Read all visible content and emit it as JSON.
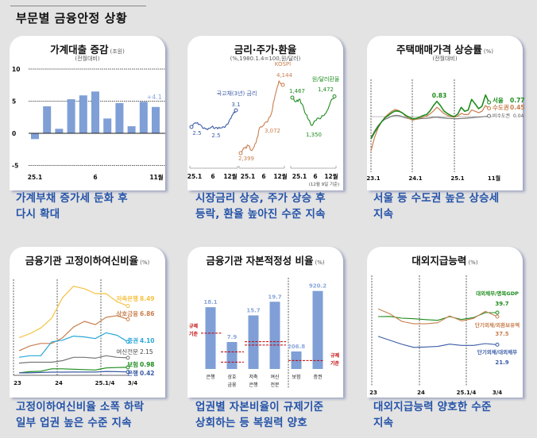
{
  "page_title": "부문별 금융안정 상황",
  "panels": [
    {
      "title": "가계대출 증감",
      "unit": "(조원)",
      "subtitle": "(전월대비)",
      "caption": [
        "가계부채 증가세 둔화 후",
        "다시 확대"
      ]
    },
    {
      "title": "금리·주가·환율",
      "unit": "",
      "subtitle": "(%,1980.1.4=100,원/달러)",
      "caption": [
        "시장금리 상승, 주가 상승 후",
        "등락, 환율 높아진 수준 지속"
      ]
    },
    {
      "title": "주택매매가격 상승률",
      "unit": "(%)",
      "subtitle": "(전월대비)",
      "caption": [
        "서울 등 수도권 높은 상승세",
        "지속"
      ]
    },
    {
      "title": "금융기관 고정이하여신비율",
      "unit": "(%)",
      "subtitle": "",
      "caption": [
        "고정이하여신비율 소폭 하락",
        "일부 업권 높은 수준 지속"
      ]
    },
    {
      "title": "금융기관 자본적정성 비율",
      "unit": "(%)",
      "subtitle": "",
      "caption": [
        "업권별 자본비율이 규제기준",
        "상회하는 등 복원력 양호"
      ]
    },
    {
      "title": "대외지급능력",
      "unit": "(%)",
      "subtitle": "",
      "caption": [
        "대외지급능력 양호한 수준",
        "지속"
      ]
    }
  ],
  "chart_data": [
    {
      "type": "bar",
      "title": "가계대출 증감",
      "categories": [
        "25.1",
        "2",
        "3",
        "4",
        "5",
        "6",
        "7",
        "8",
        "9",
        "10",
        "11"
      ],
      "values": [
        -0.9,
        4.2,
        0.7,
        5.3,
        5.9,
        6.5,
        2.3,
        4.7,
        1.1,
        4.9,
        4.1
      ],
      "x_tick_labels": [
        "25.1",
        "6",
        "11월"
      ],
      "y_ticks": [
        "10",
        "5",
        "0",
        "-5"
      ],
      "ylim": [
        -5,
        10
      ],
      "annotation": "+4.1",
      "bar_color": "#7f9fd6"
    },
    {
      "type": "line",
      "title": "금리·주가·환율",
      "note": "(12월 9일 기준)",
      "x_tick_labels": [
        "25.1",
        "6",
        "12월"
      ],
      "series": [
        {
          "name": "국고채(3년) 금리",
          "color": "#3b5ba5",
          "values": [
            2.5,
            2.65,
            2.6,
            2.45,
            2.4,
            2.5,
            2.48,
            2.46,
            2.5,
            2.6,
            2.9,
            3.1
          ],
          "labels": [
            "2.5",
            "2.5",
            "3.1"
          ]
        },
        {
          "name": "KOSPI",
          "color": "#c87f4f",
          "values": [
            2399,
            2520,
            2580,
            2470,
            2650,
            3020,
            3072,
            3150,
            3350,
            3800,
            4144,
            4050
          ],
          "labels": [
            "2,399",
            "3,072",
            "4,144"
          ]
        },
        {
          "name": "원/달러환율",
          "color": "#1e8c1e",
          "values": [
            1467,
            1450,
            1460,
            1420,
            1380,
            1350,
            1370,
            1380,
            1390,
            1410,
            1450,
            1472
          ],
          "labels": [
            "1,467",
            "1,350",
            "1,472"
          ]
        }
      ]
    },
    {
      "type": "line",
      "title": "주택매매가격 상승률",
      "x_tick_labels": [
        "23.1",
        "24.1",
        "25.1",
        "11월"
      ],
      "peak_label": "0.83",
      "series": [
        {
          "name": "서울",
          "end_label": "0.77",
          "color": "#1e8c1e",
          "values": [
            -1.21,
            -0.86,
            -0.57,
            -0.29,
            -0.07,
            0.07,
            0.21,
            0.31,
            0.29,
            0.21,
            0.07,
            -0.03,
            -0.11,
            -0.1,
            -0.03,
            0.06,
            0.11,
            0.31,
            0.6,
            0.83,
            0.6,
            0.31,
            0.17,
            0.06,
            0,
            0.14,
            0.5,
            0.29,
            0.36,
            0.93,
            0.69,
            0.43,
            0.57,
            1.17,
            0.77
          ]
        },
        {
          "name": "수도권",
          "end_label": "0.45",
          "color": "#c87f4f",
          "values": [
            -1.86,
            -1.14,
            -0.64,
            -0.29,
            -0.03,
            0.14,
            0.29,
            0.39,
            0.33,
            0.21,
            0.03,
            -0.11,
            -0.19,
            -0.14,
            -0.09,
            -0.03,
            0.03,
            0.14,
            0.31,
            0.51,
            0.34,
            0.17,
            0.07,
            0,
            -0.03,
            0.03,
            0.17,
            0.11,
            0.11,
            0.36,
            0.29,
            0.21,
            0.29,
            0.6,
            0.45
          ]
        },
        {
          "name": "비수도권",
          "end_label": "0.04",
          "color": "#777777",
          "values": [
            -1.14,
            -0.79,
            -0.5,
            -0.29,
            -0.14,
            -0.07,
            0.03,
            0.07,
            0.06,
            0,
            -0.07,
            -0.11,
            -0.14,
            -0.14,
            -0.11,
            -0.1,
            -0.09,
            -0.07,
            -0.04,
            -0.03,
            -0.06,
            -0.07,
            -0.09,
            -0.1,
            -0.11,
            -0.11,
            -0.1,
            -0.09,
            -0.07,
            -0.06,
            -0.04,
            -0.03,
            -0.01,
            0.01,
            0.04
          ]
        }
      ]
    },
    {
      "type": "line",
      "title": "금융기관 고정이하여신비율",
      "x_tick_labels": [
        "23",
        "24",
        "25.1/4",
        "3/4"
      ],
      "series": [
        {
          "name": "저축은행",
          "end_label": "8.49",
          "color": "#f5c242",
          "values": [
            4.6,
            5.1,
            5.8,
            7.0,
            9.5,
            10.9,
            10.6,
            10.0,
            10.0,
            9.0,
            8.49
          ]
        },
        {
          "name": "상호금융",
          "end_label": "6.86",
          "color": "#c87f4f",
          "values": [
            3.0,
            3.6,
            3.9,
            3.9,
            4.6,
            5.9,
            6.6,
            6.2,
            7.1,
            7.3,
            6.86
          ]
        },
        {
          "name": "증권",
          "end_label": "4.10",
          "color": "#2aa7d8",
          "values": [
            2.2,
            2.4,
            2.4,
            4.1,
            4.3,
            4.8,
            4.7,
            4.5,
            5.2,
            4.9,
            4.1
          ]
        },
        {
          "name": "여신전문",
          "end_label": "2.15",
          "color": "#777777",
          "values": [
            1.5,
            1.6,
            1.6,
            1.6,
            1.8,
            2.2,
            2.2,
            2.1,
            2.4,
            2.2,
            2.15
          ]
        },
        {
          "name": "보험",
          "end_label": "0.98",
          "color": "#1e8c1e",
          "values": [
            0.3,
            0.45,
            0.5,
            0.8,
            0.8,
            0.75,
            0.7,
            0.65,
            0.9,
            0.95,
            0.98
          ]
        },
        {
          "name": "은행",
          "end_label": "0.42",
          "color": "#3b5ba5",
          "values": [
            0.3,
            0.3,
            0.35,
            0.39,
            0.39,
            0.4,
            0.4,
            0.4,
            0.48,
            0.45,
            0.42
          ]
        }
      ]
    },
    {
      "type": "bar",
      "title": "금융기관 자본적정성 비율",
      "categories": [
        [
          "은행"
        ],
        [
          "상호",
          "금융"
        ],
        [
          "저축",
          "은행"
        ],
        [
          "여신",
          "전문"
        ],
        [
          "보험"
        ],
        [
          "증권"
        ]
      ],
      "values": [
        18.1,
        7.9,
        15.7,
        19.7,
        206.8,
        920.2
      ],
      "value_labels": [
        "18.1",
        "7.9",
        "15.7",
        "19.7",
        "206.8",
        "920.2"
      ],
      "regulatory_label": [
        "규제",
        "기준"
      ],
      "regulatory_thresholds": [
        [
          10.5
        ],
        [
          5,
          2
        ],
        [
          8,
          7
        ],
        [
          100
        ]
      ],
      "bar_color": "#7f9fd6",
      "threshold_color": "#c00000"
    },
    {
      "type": "line",
      "title": "대외지급능력",
      "x_tick_labels": [
        "23",
        "24",
        "25.1/4",
        "3/4"
      ],
      "series": [
        {
          "name": "대외채무/명목GDP",
          "end_label": "39.7",
          "color": "#1e8c1e",
          "values": [
            37.5,
            37.6,
            36.6,
            36.3,
            35.8,
            35.4,
            37.5,
            35.9,
            36.9,
            39.7,
            39.7
          ]
        },
        {
          "name": "단기외채/외환보유액",
          "end_label": "37.5",
          "color": "#c87f4f",
          "values": [
            41.8,
            39.0,
            34.8,
            33.5,
            33.5,
            34.1,
            37.9,
            35.1,
            36.5,
            40.4,
            37.5
          ]
        },
        {
          "name": "단기외채/대외채무",
          "end_label": "21.9",
          "color": "#3b5ba5",
          "values": [
            26.5,
            24.3,
            22.1,
            20.4,
            20.6,
            20.9,
            22.2,
            21.5,
            21.5,
            22.5,
            21.9
          ]
        }
      ]
    }
  ]
}
